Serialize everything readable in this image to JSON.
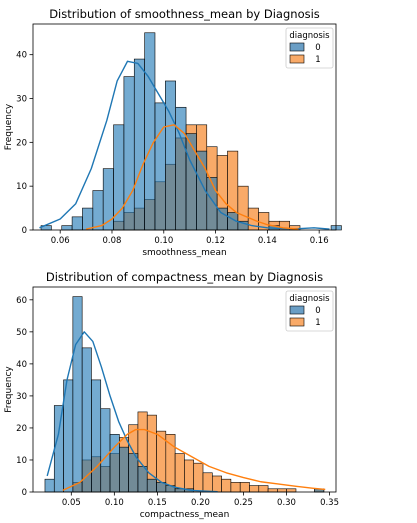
{
  "colors": {
    "series0": "#1f77b4",
    "series1": "#ff7f0e",
    "bar0": "#6a9ec5",
    "bar1": "#f9aa68",
    "overlap": "#5f7c8c"
  },
  "chart_data": [
    {
      "type": "bar",
      "title": "Distribution of smoothness_mean by Diagnosis",
      "xlabel": "smoothness_mean",
      "ylabel": "Frequency",
      "xlim": [
        0.0495,
        0.1665
      ],
      "ylim": [
        0,
        47
      ],
      "xticks": [
        0.06,
        0.08,
        0.1,
        0.12,
        0.14,
        0.16
      ],
      "xtick_labels": [
        "0.06",
        "0.08",
        "0.10",
        "0.12",
        "0.14",
        "0.16"
      ],
      "yticks": [
        0,
        10,
        20,
        30,
        40
      ],
      "ytick_labels": [
        "0",
        "10",
        "20",
        "30",
        "40"
      ],
      "bin_start": 0.0526,
      "bin_width": 0.004,
      "grid": false,
      "legend": {
        "title": "diagnosis",
        "placement": "top-right",
        "entries": [
          "0",
          "1"
        ]
      },
      "series": [
        {
          "name": "0",
          "values": [
            1,
            0,
            1,
            3,
            5,
            9,
            14,
            24,
            35,
            39,
            45,
            29,
            34,
            28,
            22,
            18,
            12,
            5,
            4,
            2,
            0,
            0,
            1,
            0,
            0,
            0,
            0,
            0,
            1
          ]
        },
        {
          "name": "1",
          "values": [
            0,
            0,
            0,
            0,
            0,
            0,
            0,
            2,
            4,
            5,
            7,
            11,
            15,
            21,
            24,
            24,
            19,
            17,
            18,
            10,
            5,
            4,
            2,
            2,
            1,
            0,
            0,
            0,
            0
          ]
        }
      ],
      "kde": [
        {
          "name": "0",
          "x": [
            0.052,
            0.06,
            0.066,
            0.072,
            0.078,
            0.082,
            0.086,
            0.09,
            0.094,
            0.098,
            0.102,
            0.106,
            0.11,
            0.116,
            0.122,
            0.128,
            0.134,
            0.14,
            0.146,
            0.152,
            0.158,
            0.164
          ],
          "y": [
            0.5,
            2.5,
            6,
            14,
            25,
            34,
            38.5,
            38,
            35,
            31,
            27,
            22,
            16,
            9,
            4,
            2,
            1,
            0.5,
            0.3,
            0.3,
            0.5,
            0.2
          ]
        },
        {
          "name": "1",
          "x": [
            0.07,
            0.076,
            0.08,
            0.084,
            0.088,
            0.092,
            0.096,
            0.1,
            0.104,
            0.108,
            0.112,
            0.116,
            0.12,
            0.124,
            0.128,
            0.132,
            0.136,
            0.14,
            0.146,
            0.152
          ],
          "y": [
            0.2,
            1,
            2.5,
            5,
            9,
            15,
            20,
            23.5,
            24,
            22,
            18,
            14,
            9,
            6,
            4,
            3,
            2,
            1.2,
            0.5,
            0.2
          ]
        }
      ]
    },
    {
      "type": "bar",
      "title": "Distribution of compactness_mean by Diagnosis",
      "xlabel": "compactness_mean",
      "ylabel": "Frequency",
      "xlim": [
        0.0055,
        0.3575
      ],
      "ylim": [
        0,
        64
      ],
      "xticks": [
        0.05,
        0.1,
        0.15,
        0.2,
        0.25,
        0.3,
        0.35
      ],
      "xtick_labels": [
        "0.05",
        "0.10",
        "0.15",
        "0.20",
        "0.25",
        "0.30",
        "0.35"
      ],
      "yticks": [
        0,
        10,
        20,
        30,
        40,
        50,
        60
      ],
      "ytick_labels": [
        "0",
        "10",
        "20",
        "30",
        "40",
        "50",
        "60"
      ],
      "bin_start": 0.0194,
      "bin_width": 0.0108,
      "grid": false,
      "legend": {
        "title": "diagnosis",
        "placement": "top-right",
        "entries": [
          "0",
          "1"
        ]
      },
      "series": [
        {
          "name": "0",
          "values": [
            4,
            27,
            35,
            61,
            45,
            35,
            26,
            18,
            14,
            12,
            8,
            4,
            3,
            2,
            1,
            1,
            0,
            0,
            0,
            0,
            0,
            0,
            0,
            0,
            0,
            0,
            0,
            0,
            0,
            1
          ]
        },
        {
          "name": "1",
          "values": [
            0,
            0,
            0,
            3,
            10,
            11,
            8,
            12,
            17,
            21,
            25,
            24,
            19,
            18,
            12,
            10,
            9,
            6,
            5,
            4,
            3,
            3,
            2,
            2,
            1,
            1,
            1,
            0,
            0,
            1
          ]
        }
      ],
      "kde": [
        {
          "name": "0",
          "x": [
            0.022,
            0.035,
            0.045,
            0.055,
            0.065,
            0.075,
            0.085,
            0.095,
            0.105,
            0.115,
            0.125,
            0.14,
            0.155,
            0.17,
            0.19,
            0.22
          ],
          "y": [
            5,
            18,
            35,
            46,
            50,
            47,
            39,
            30,
            22,
            16,
            11,
            6,
            3,
            1.5,
            0.5,
            0.1
          ]
        },
        {
          "name": "1",
          "x": [
            0.04,
            0.06,
            0.08,
            0.1,
            0.115,
            0.125,
            0.135,
            0.15,
            0.17,
            0.19,
            0.21,
            0.23,
            0.25,
            0.27,
            0.29,
            0.31,
            0.33,
            0.345
          ],
          "y": [
            0.5,
            3,
            8,
            14,
            18,
            19.5,
            19.5,
            18,
            14,
            11,
            8,
            6,
            4.5,
            3.2,
            2.5,
            1.8,
            1.2,
            0.8
          ]
        }
      ]
    }
  ]
}
